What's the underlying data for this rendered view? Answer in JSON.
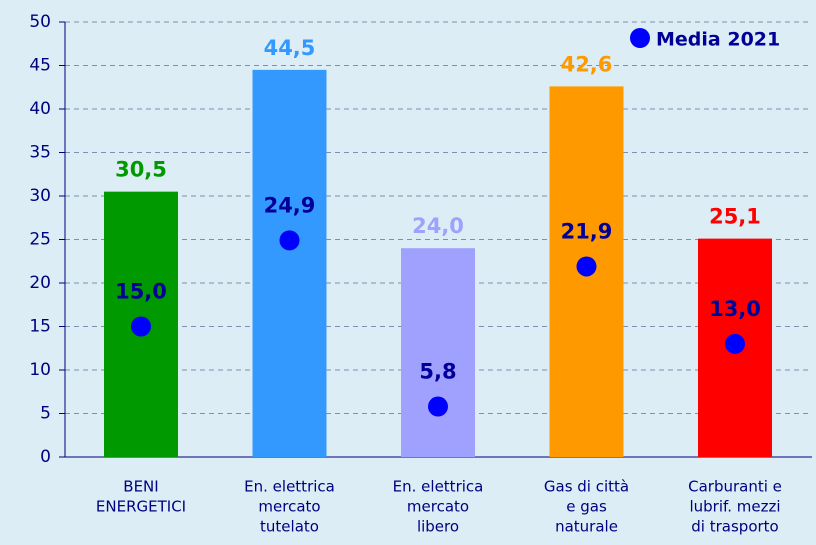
{
  "chart_data": {
    "type": "bar",
    "categories": [
      [
        "BENI",
        "ENERGETICI"
      ],
      [
        "En. elettrica",
        "mercato",
        "tutelato"
      ],
      [
        "En. elettrica",
        "mercato",
        "libero"
      ],
      [
        "Gas di città",
        "e gas",
        "naturale"
      ],
      [
        "Carburanti e",
        "lubrif. mezzi",
        "di trasporto"
      ]
    ],
    "values": [
      30.5,
      44.5,
      24.0,
      42.6,
      25.1
    ],
    "value_labels": [
      "30,5",
      "44,5",
      "24,0",
      "42,6",
      "25,1"
    ],
    "colors": [
      "#009900",
      "#3399ff",
      "#a0a0ff",
      "#ff9900",
      "#ff0000"
    ],
    "series": [
      {
        "name": "Media 2021",
        "color": "#0000ff",
        "values": [
          15.0,
          24.9,
          5.8,
          21.9,
          13.0
        ],
        "value_labels": [
          "15,0",
          "24,9",
          "5,8",
          "21,9",
          "13,0"
        ]
      }
    ],
    "ylim": [
      0,
      50
    ],
    "yticks": [
      0,
      5,
      10,
      15,
      20,
      25,
      30,
      35,
      40,
      45,
      50
    ],
    "grid": true,
    "legend": "top-right"
  }
}
